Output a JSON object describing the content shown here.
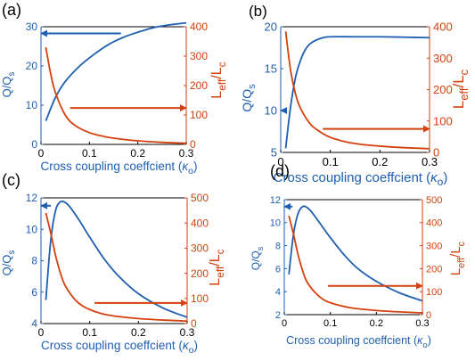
{
  "figure": {
    "colors": {
      "blue": "#1f5fb0",
      "red": "#d4410e",
      "axis": "#000000"
    }
  },
  "chart_data": [
    {
      "type": "line",
      "panel_label": "(a)",
      "xlabel": "Cross coupling coeffcient (",
      "xlabel_kappa": "κ",
      "xlabel_sub": "o",
      "xlabel_close": ")",
      "ylabel_left": {
        "main": "Q/Q",
        "sub": "s"
      },
      "ylabel_right": {
        "main": "L",
        "sub1": "eff",
        "mid": "/L",
        "sub2": "c"
      },
      "xlim": [
        0,
        0.3
      ],
      "ylim_left": [
        0,
        30
      ],
      "ylim_right": [
        0,
        400
      ],
      "xticks": [
        "0",
        "0.1",
        "0.2",
        "0.3"
      ],
      "yticks_left": [
        "0",
        "10",
        "20",
        "30"
      ],
      "yticks_right": [
        "0",
        "100",
        "200",
        "300",
        "400"
      ],
      "series": [
        {
          "axis": "left",
          "color": "blue",
          "x": [
            0.01,
            0.03,
            0.05,
            0.08,
            0.11,
            0.14,
            0.17,
            0.2,
            0.23,
            0.26,
            0.3
          ],
          "y": [
            6,
            12,
            16,
            20,
            23,
            25.5,
            27.3,
            28.6,
            29.7,
            30.4,
            31
          ]
        },
        {
          "axis": "right",
          "color": "red",
          "x": [
            0.01,
            0.02,
            0.03,
            0.05,
            0.07,
            0.1,
            0.13,
            0.16,
            0.2,
            0.25,
            0.3
          ],
          "y": [
            330,
            240,
            175,
            100,
            65,
            40,
            27,
            19,
            12,
            7,
            4
          ]
        }
      ],
      "arrows": [
        {
          "axis": "left",
          "y": 28.3,
          "x_from": 0.165,
          "x_to": 0.0
        },
        {
          "axis": "right",
          "y": 124,
          "x_from": 0.06,
          "x_to": 0.3
        }
      ]
    },
    {
      "type": "line",
      "panel_label": "(b)",
      "xlabel": "Cross coupling coeffcient (",
      "xlabel_kappa": "κ",
      "xlabel_sub": "o",
      "xlabel_close": ")",
      "ylabel_left": {
        "main": "Q/Q",
        "sub": "s"
      },
      "ylabel_right": {
        "main": "L",
        "sub1": "eff",
        "mid": "/L",
        "sub2": "c"
      },
      "xlim": [
        0,
        0.3
      ],
      "ylim_left": [
        5,
        20
      ],
      "ylim_right": [
        0,
        400
      ],
      "xticks": [
        "0",
        "0.1",
        "0.2",
        "0.3"
      ],
      "yticks_left": [
        "5",
        "10",
        "15",
        "20"
      ],
      "yticks_right": [
        "0",
        "100",
        "200",
        "300",
        "400"
      ],
      "series": [
        {
          "axis": "left",
          "color": "blue",
          "x": [
            0.01,
            0.02,
            0.03,
            0.04,
            0.05,
            0.06,
            0.08,
            0.1,
            0.15,
            0.2,
            0.25,
            0.3
          ],
          "y": [
            5.5,
            10.5,
            14,
            16,
            17.3,
            18,
            18.6,
            18.8,
            18.8,
            18.8,
            18.75,
            18.7
          ]
        },
        {
          "axis": "right",
          "color": "red",
          "x": [
            0.01,
            0.02,
            0.03,
            0.04,
            0.06,
            0.08,
            0.1,
            0.13,
            0.16,
            0.2,
            0.25,
            0.3
          ],
          "y": [
            385,
            260,
            185,
            140,
            90,
            65,
            48,
            34,
            26,
            20,
            15,
            12
          ]
        }
      ],
      "arrows": [
        {
          "axis": "left",
          "y": 10,
          "x_from": 0.012,
          "x_to": 0.0
        },
        {
          "axis": "right",
          "y": 75,
          "x_from": 0.085,
          "x_to": 0.3
        }
      ]
    },
    {
      "type": "line",
      "panel_label": "(c)",
      "xlabel": "Cross coupling coeffcient (",
      "xlabel_kappa": "κ",
      "xlabel_sub": "o",
      "xlabel_close": ")",
      "ylabel_left": {
        "main": "Q/Q",
        "sub": "s"
      },
      "ylabel_right": {
        "main": "L",
        "sub1": "eff",
        "mid": "/L",
        "sub2": "c"
      },
      "xlim": [
        0,
        0.3
      ],
      "ylim_left": [
        4,
        12
      ],
      "ylim_right": [
        0,
        500
      ],
      "xticks": [
        "0",
        "0.1",
        "0.2",
        "0.3"
      ],
      "yticks_left": [
        "4",
        "6",
        "8",
        "10",
        "12"
      ],
      "yticks_right": [
        "0",
        "100",
        "200",
        "300",
        "400",
        "500"
      ],
      "series": [
        {
          "axis": "left",
          "color": "blue",
          "x": [
            0.01,
            0.02,
            0.03,
            0.04,
            0.05,
            0.06,
            0.08,
            0.1,
            0.13,
            0.16,
            0.2,
            0.25,
            0.3
          ],
          "y": [
            5.5,
            9.3,
            11.2,
            11.75,
            11.7,
            11.4,
            10.5,
            9.5,
            8.1,
            7.0,
            5.9,
            5.0,
            4.4
          ]
        },
        {
          "axis": "right",
          "color": "red",
          "x": [
            0.01,
            0.02,
            0.03,
            0.04,
            0.05,
            0.07,
            0.09,
            0.12,
            0.15,
            0.2,
            0.25,
            0.3
          ],
          "y": [
            440,
            360,
            270,
            200,
            150,
            95,
            65,
            42,
            30,
            20,
            14,
            10
          ]
        }
      ],
      "arrows": [
        {
          "axis": "left",
          "y": 11.5,
          "x_from": 0.02,
          "x_to": 0.0
        },
        {
          "axis": "right",
          "y": 82,
          "x_from": 0.11,
          "x_to": 0.3
        }
      ]
    },
    {
      "type": "line",
      "panel_label": "(d)",
      "xlabel": "Cross coupling coeffcient (",
      "xlabel_kappa": "κ",
      "xlabel_sub": "o",
      "xlabel_close": ")",
      "ylabel_left": {
        "main": "Q/Q",
        "sub": "s"
      },
      "ylabel_right": {
        "main": "L",
        "sub1": "eff",
        "mid": "/L",
        "sub2": "c"
      },
      "xlim": [
        0,
        0.3
      ],
      "ylim_left": [
        2,
        12
      ],
      "ylim_right": [
        0,
        500
      ],
      "xticks": [
        "0",
        "0.1",
        "0.2",
        "0.3"
      ],
      "yticks_left": [
        "2",
        "4",
        "6",
        "8",
        "10",
        "12"
      ],
      "yticks_right": [
        "0",
        "100",
        "200",
        "300",
        "400",
        "500"
      ],
      "series": [
        {
          "axis": "left",
          "color": "blue",
          "x": [
            0.01,
            0.02,
            0.03,
            0.04,
            0.05,
            0.06,
            0.08,
            0.1,
            0.13,
            0.16,
            0.2,
            0.25,
            0.3
          ],
          "y": [
            5.5,
            9,
            10.8,
            11.4,
            11.3,
            10.9,
            9.8,
            8.7,
            7.2,
            6.0,
            4.9,
            3.9,
            3.2
          ]
        },
        {
          "axis": "right",
          "color": "red",
          "x": [
            0.01,
            0.02,
            0.03,
            0.04,
            0.05,
            0.07,
            0.09,
            0.12,
            0.15,
            0.2,
            0.25,
            0.3
          ],
          "y": [
            430,
            350,
            260,
            190,
            140,
            90,
            60,
            40,
            28,
            18,
            12,
            8
          ]
        }
      ],
      "arrows": [
        {
          "axis": "left",
          "y": 11.4,
          "x_from": 0.018,
          "x_to": 0.0
        },
        {
          "axis": "right",
          "y": 125,
          "x_from": 0.095,
          "x_to": 0.3
        }
      ]
    }
  ]
}
